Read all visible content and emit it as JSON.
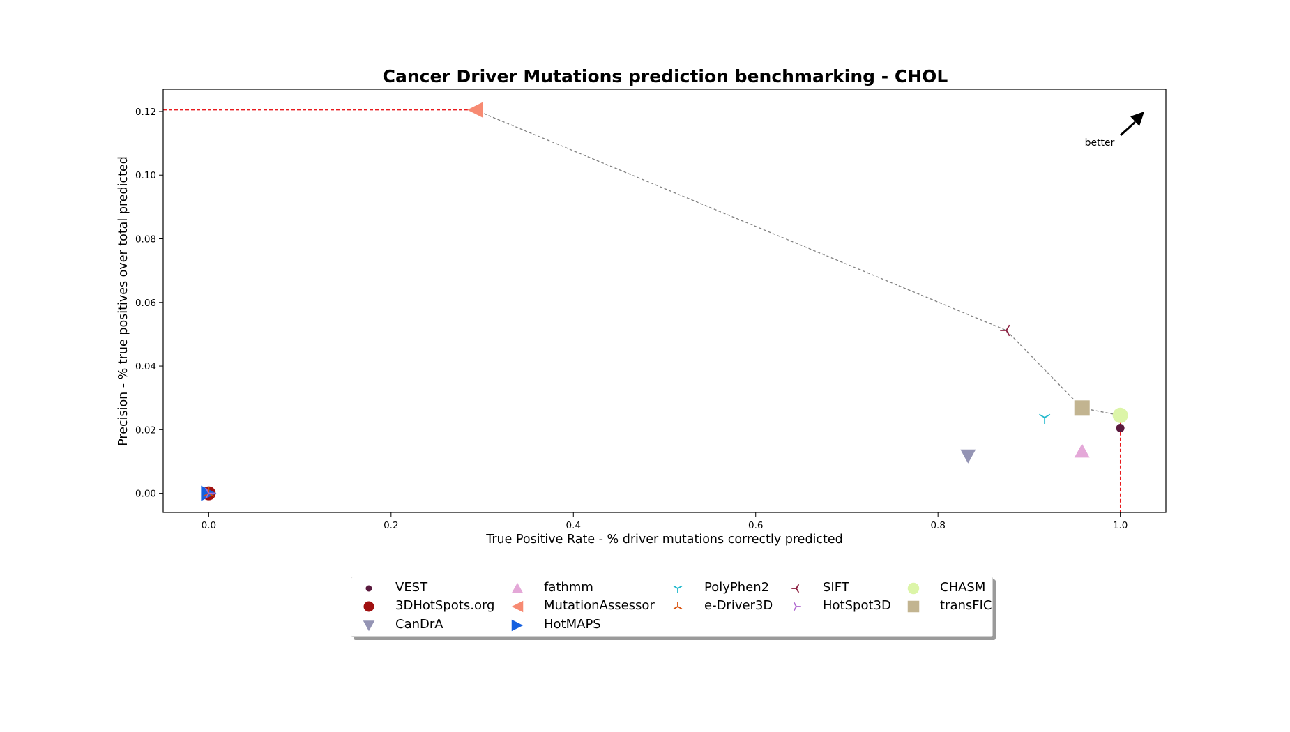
{
  "chart_data": {
    "type": "scatter",
    "title": "Cancer Driver Mutations prediction benchmarking - CHOL",
    "xlabel": "True Positive Rate - % driver mutations correctly predicted",
    "ylabel": "Precision - % true positives over total predicted",
    "xlim": [
      -0.05,
      1.05
    ],
    "ylim": [
      -0.006,
      0.127
    ],
    "xticks": [
      0.0,
      0.2,
      0.4,
      0.6,
      0.8,
      1.0
    ],
    "xtick_labels": [
      "0.0",
      "0.2",
      "0.4",
      "0.6",
      "0.8",
      "1.0"
    ],
    "yticks": [
      0.0,
      0.02,
      0.04,
      0.06,
      0.08,
      0.1,
      0.12
    ],
    "ytick_labels": [
      "0.00",
      "0.02",
      "0.04",
      "0.06",
      "0.08",
      "0.10",
      "0.12"
    ],
    "grid": false,
    "annotation": "better",
    "legend_position": "below",
    "points": [
      {
        "name": "VEST",
        "x": 1.0,
        "y": 0.0205,
        "color": "#5a1a3e",
        "marker": "circle-small"
      },
      {
        "name": "3DHotSpots.org",
        "x": 0.0,
        "y": 0.0,
        "color": "#a01010",
        "marker": "circle"
      },
      {
        "name": "CanDrA",
        "x": 0.833,
        "y": 0.0118,
        "color": "#9494b4",
        "marker": "triangle-down"
      },
      {
        "name": "fathmm",
        "x": 0.958,
        "y": 0.0132,
        "color": "#e4a8d8",
        "marker": "triangle-up"
      },
      {
        "name": "MutationAssessor",
        "x": 0.292,
        "y": 0.1205,
        "color": "#f78a72",
        "marker": "triangle-left"
      },
      {
        "name": "HotMAPS",
        "x": 0.0,
        "y": 0.0,
        "color": "#1560e0",
        "marker": "triangle-right"
      },
      {
        "name": "PolyPhen2",
        "x": 0.917,
        "y": 0.0238,
        "color": "#1fb8cc",
        "marker": "tri-down"
      },
      {
        "name": "e-Driver3D",
        "x": 0.0,
        "y": 0.0,
        "color": "#d8500a",
        "marker": "tri-up"
      },
      {
        "name": "SIFT",
        "x": 0.875,
        "y": 0.0512,
        "color": "#8b1e3f",
        "marker": "tri-left"
      },
      {
        "name": "HotSpot3D",
        "x": 0.0,
        "y": 0.0,
        "color": "#b06ad0",
        "marker": "tri-right"
      },
      {
        "name": "CHASM",
        "x": 1.0,
        "y": 0.0245,
        "color": "#dcf5a8",
        "marker": "circle-large"
      },
      {
        "name": "transFIC",
        "x": 0.958,
        "y": 0.0268,
        "color": "#c2b490",
        "marker": "square"
      }
    ],
    "pareto_frontier": [
      {
        "x": 0.292,
        "y": 0.1205
      },
      {
        "x": 0.875,
        "y": 0.0512
      },
      {
        "x": 0.958,
        "y": 0.0268
      },
      {
        "x": 1.0,
        "y": 0.0245
      }
    ],
    "frontier_color": "#808080",
    "guide_color": "#e8191c"
  }
}
